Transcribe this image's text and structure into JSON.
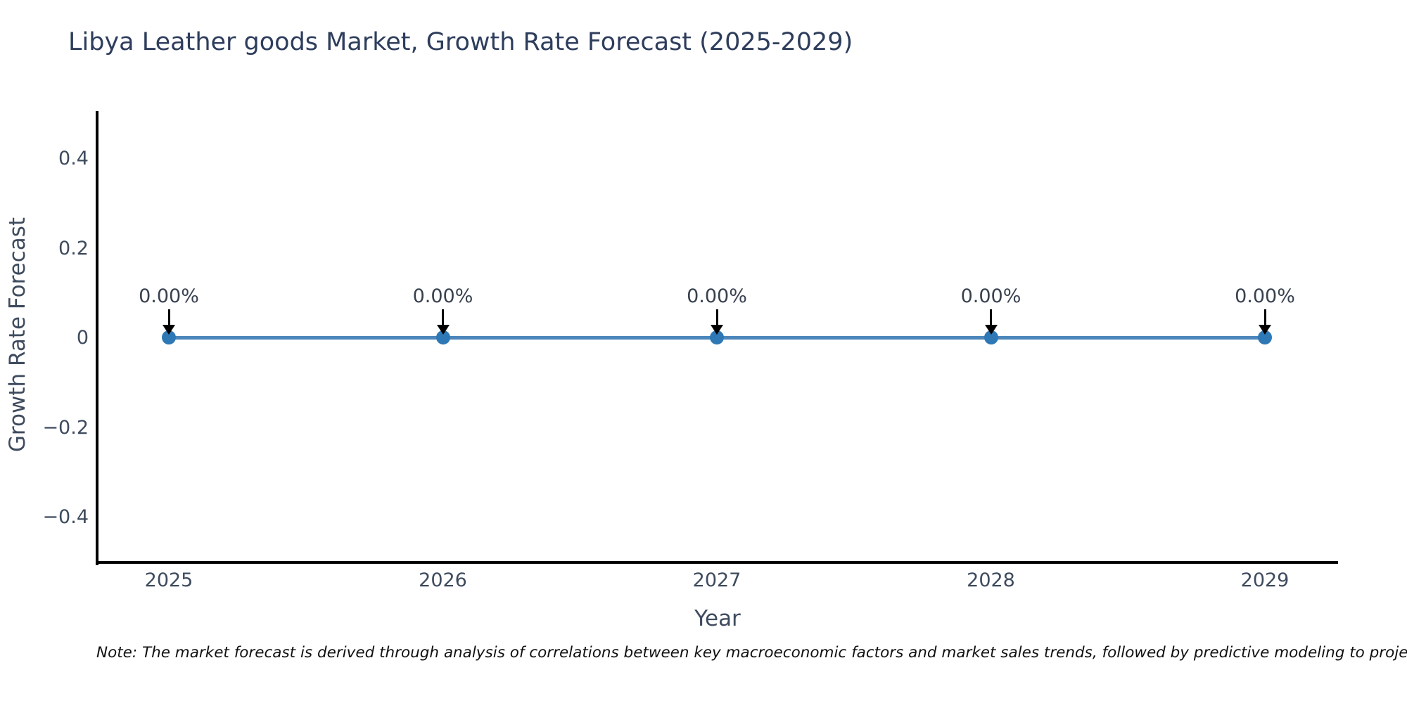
{
  "header": {
    "title": "Libya Leather goods Market, Growth Rate Forecast (2025-2029)"
  },
  "chart_data": {
    "type": "line",
    "title": "Libya Leather goods Market, Growth Rate Forecast (2025-2029)",
    "x": [
      "2025",
      "2026",
      "2027",
      "2028",
      "2029"
    ],
    "series": [
      {
        "name": "Growth Rate Forecast",
        "values": [
          0,
          0,
          0,
          0,
          0
        ]
      }
    ],
    "point_labels": [
      "0.00%",
      "0.00%",
      "0.00%",
      "0.00%",
      "0.00%"
    ],
    "xlabel": "Year",
    "ylabel": "Growth Rate Forecast",
    "ylim": [
      -0.5,
      0.5
    ],
    "yticks": [
      0.4,
      0.2,
      0,
      -0.2,
      -0.4
    ],
    "ytick_labels": [
      "0.4",
      "0.2",
      "0",
      "−0.2",
      "−0.4"
    ],
    "grid": false,
    "legend": "none",
    "annotation_style": "down-arrow",
    "colors": {
      "line": "#4c86bb",
      "marker": "#2e78b6",
      "axis": "#000000",
      "tick_label": "#3e4b5e",
      "title": "#2e3d5c",
      "annotation": "#38414f"
    }
  },
  "footnote": {
    "text": "Note: The market forecast is derived through analysis of correlations between key macroeconomic factors and market sales trends, followed by predictive modeling to project future sales."
  }
}
